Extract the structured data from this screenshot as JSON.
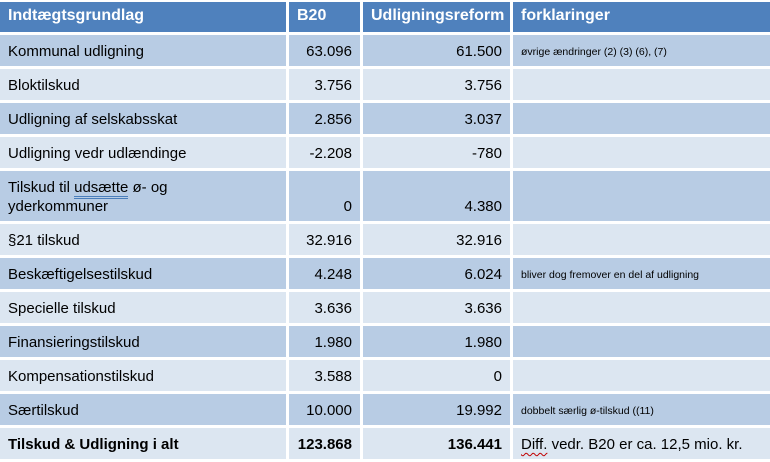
{
  "table": {
    "columns": [
      "Indtægtsgrundlag",
      "B20",
      "Udligningsreform",
      "forklaringer"
    ],
    "rows": [
      {
        "label": "Kommunal udligning",
        "b20": "63.096",
        "reform": "61.500",
        "note": "øvrige ændringer (2) (3) (6), (7)"
      },
      {
        "label": "Bloktilskud",
        "b20": "3.756",
        "reform": "3.756",
        "note": ""
      },
      {
        "label": "Udligning af selskabsskat",
        "b20": "2.856",
        "reform": "3.037",
        "note": ""
      },
      {
        "label": "Udligning vedr udlændinge",
        "b20": "-2.208",
        "reform": "-780",
        "note": ""
      },
      {
        "label_parts": [
          {
            "text": "Tilskud til "
          },
          {
            "text": "udsætte",
            "style": "underline-double-blue"
          },
          {
            "text": " ø- og"
          },
          {
            "break": true
          },
          {
            "text": "yderkommuner"
          }
        ],
        "b20": "0",
        "reform": "4.380",
        "note": "",
        "tall": true
      },
      {
        "label": "§21 tilskud",
        "b20": "32.916",
        "reform": "32.916",
        "note": ""
      },
      {
        "label": "Beskæftigelsestilskud",
        "b20": "4.248",
        "reform": "6.024",
        "note": "bliver dog fremover en del af udligning"
      },
      {
        "label": "Specielle tilskud",
        "b20": "3.636",
        "reform": "3.636",
        "note": ""
      },
      {
        "label": "Finansieringstilskud",
        "b20": "1.980",
        "reform": "1.980",
        "note": ""
      },
      {
        "label": "Kompensationstilskud",
        "b20": "3.588",
        "reform": "0",
        "note": ""
      },
      {
        "label": "Særtilskud",
        "b20": "10.000",
        "reform": "19.992",
        "note": "dobbelt særlig ø-tilskud ((11)"
      },
      {
        "label": "Tilskud & Udligning i alt",
        "b20": "123.868",
        "reform": "136.441",
        "note_parts": [
          {
            "text": "Diff.",
            "style": "underline-wavy-red"
          },
          {
            "text": " vedr. B20 er ca. 12,5 mio. kr."
          }
        ],
        "total": true
      }
    ],
    "colors": {
      "header_bg": "#4f81bd",
      "row_dark": "#b8cce4",
      "row_light": "#dce6f1",
      "border": "#ffffff",
      "underline_blue": "#4a7ebb",
      "squiggle_red": "#c00000"
    }
  }
}
